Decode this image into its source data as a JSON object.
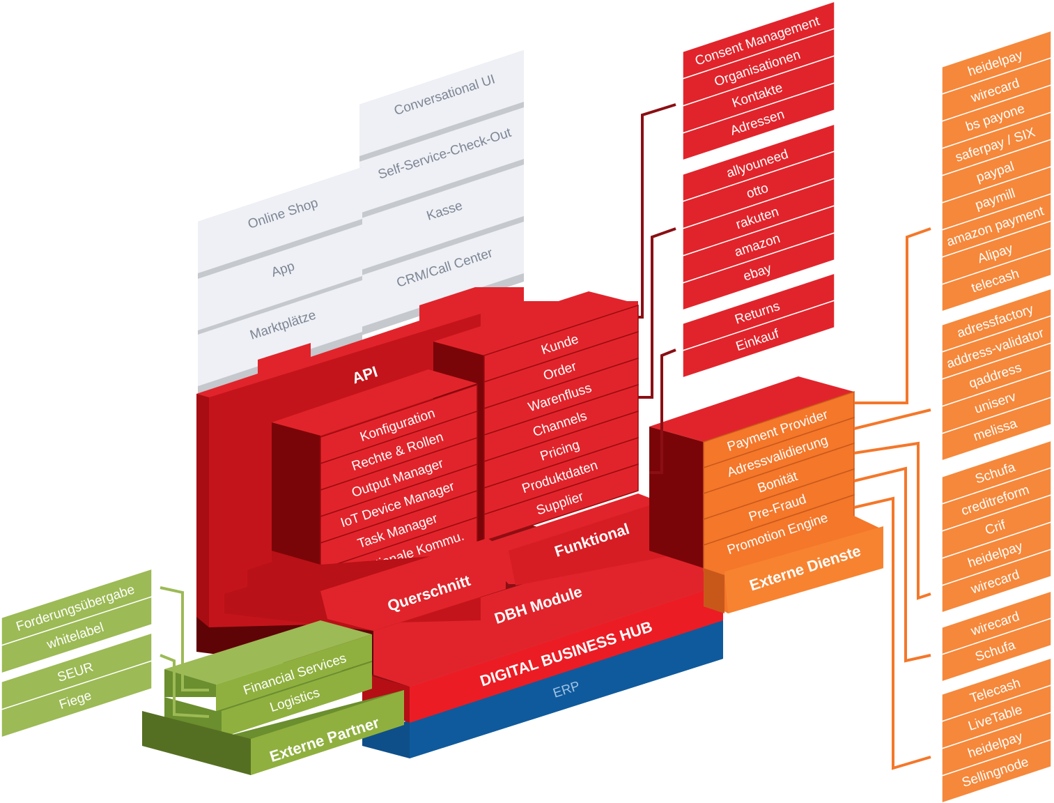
{
  "colors": {
    "red": "#e1242b",
    "red_dark": "#7a0508",
    "red_bright": "#ec1c24",
    "orange": "#f4772a",
    "orange_box": "#f5883b",
    "green": "#8fb03e",
    "green_light": "#9cba55",
    "green_dark": "#6b8e2e",
    "blue": "#0e4f8a",
    "grey_face": "#eef0f5",
    "grey_edge": "#c5c8cd",
    "grey_text": "#7d8594"
  },
  "channels": {
    "items": [
      "Conversational UI",
      "Self-Service-Check-Out",
      "Kasse",
      "CRM/Call Center",
      "Online Shop",
      "App",
      "Marktplätze"
    ]
  },
  "hub": {
    "api": "API",
    "querschnitt": {
      "title": "Querschnitt",
      "items": [
        "Konfiguration",
        "Rechte & Rollen",
        "Output Manager",
        "IoT Device Manager",
        "Task Manager",
        "Transaktionale Kommu."
      ]
    },
    "funktional": {
      "title": "Funktional",
      "items": [
        "Kunde",
        "Order",
        "Warenfluss",
        "Channels",
        "Pricing",
        "Produktdaten",
        "Supplier"
      ]
    },
    "dbh_module": "DBH Module",
    "digital_business_hub": "DIGITAL BUSINESS HUB",
    "erp": "ERP"
  },
  "externe_dienste": {
    "title": "Externe Dienste",
    "items": [
      "Payment Provider",
      "Adressvalidierung",
      "Bonität",
      "Pre-Fraud",
      "Promotion Engine"
    ]
  },
  "externe_partner": {
    "title": "Externe Partner",
    "items": [
      "Financial Services",
      "Logistics"
    ]
  },
  "red_groups": [
    [
      "Consent Management",
      "Organisationen",
      "Kontakte",
      "Adressen"
    ],
    [
      "allyouneed",
      "otto",
      "rakuten",
      "amazon",
      "ebay"
    ],
    [
      "Returns",
      "Einkauf"
    ]
  ],
  "orange_groups": [
    [
      "heidelpay",
      "wirecard",
      "bs payone",
      "saferpay / SIX",
      "paypal",
      "paymill",
      "amazon payment",
      "Alipay",
      "telecash"
    ],
    [
      "adressfactory",
      "address-validator",
      "qaddress",
      "uniserv",
      "melissa"
    ],
    [
      "Schufa",
      "creditreform",
      "Crif",
      "heidelpay",
      "wirecard"
    ],
    [
      "wirecard",
      "Schufa"
    ],
    [
      "Telecash",
      "LiveTable",
      "heidelpay",
      "Sellingnode"
    ]
  ],
  "green_groups": [
    [
      "Forderungsübergabe",
      "whitelabel"
    ],
    [
      "SEUR",
      "Fiege"
    ]
  ]
}
